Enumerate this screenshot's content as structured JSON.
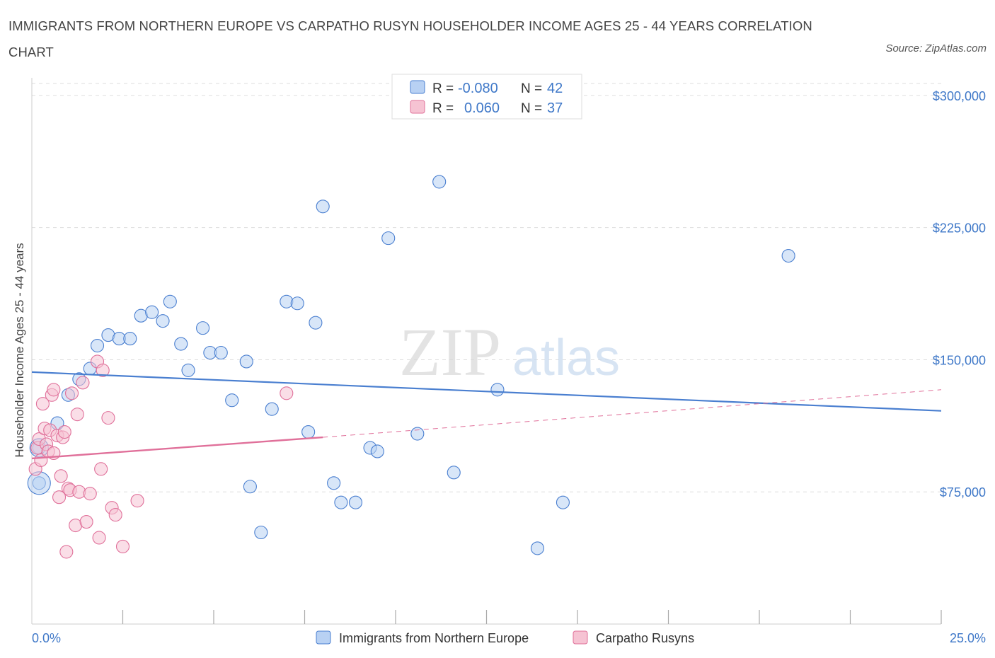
{
  "title": "IMMIGRANTS FROM NORTHERN EUROPE VS CARPATHO RUSYN HOUSEHOLDER INCOME AGES 25 - 44 YEARS CORRELATION CHART",
  "source": "Source: ZipAtlas.com",
  "watermark": {
    "zip": "ZIP",
    "atlas": "atlas"
  },
  "colors": {
    "blue": "#4a7fd0",
    "blue_fill": "#b8d1f3",
    "pink": "#e0709a",
    "pink_fill": "#f6c3d3",
    "axis_text": "#3f78c8",
    "grid": "#dddddd"
  },
  "legend_top": [
    {
      "r_label": "R =",
      "r_value": "-0.080",
      "n_label": "N =",
      "n_value": "42"
    },
    {
      "r_label": "R =",
      "r_value": "0.060",
      "n_label": "N =",
      "n_value": "37"
    }
  ],
  "chart_data": {
    "type": "scatter",
    "ylabel": "Householder Income Ages 25 - 44 years",
    "xlim": [
      0,
      25
    ],
    "ylim": [
      0,
      310000
    ],
    "x_tick_labels": [
      "0.0%",
      "25.0%"
    ],
    "y_ticks": [
      {
        "value": 75000,
        "label": "$75,000"
      },
      {
        "value": 150000,
        "label": "$150,000"
      },
      {
        "value": 225000,
        "label": "$225,000"
      },
      {
        "value": 300000,
        "label": "$300,000"
      }
    ],
    "grid": "horizontal dashed",
    "legend_position": "bottom-center",
    "series": [
      {
        "name": "Immigrants from Northern Europe",
        "color": "#4a7fd0",
        "trend": {
          "x": [
            0,
            25
          ],
          "y": [
            143000,
            121000
          ],
          "style": "solid"
        },
        "points": [
          [
            0.2,
            100000
          ],
          [
            0.2,
            80000
          ],
          [
            0.7,
            114000
          ],
          [
            1.0,
            130000
          ],
          [
            1.3,
            139000
          ],
          [
            1.6,
            145000
          ],
          [
            1.8,
            158000
          ],
          [
            2.1,
            164000
          ],
          [
            2.4,
            162000
          ],
          [
            2.7,
            162000
          ],
          [
            3.0,
            175000
          ],
          [
            3.3,
            177000
          ],
          [
            3.6,
            172000
          ],
          [
            3.8,
            183000
          ],
          [
            4.1,
            159000
          ],
          [
            4.3,
            144000
          ],
          [
            4.7,
            168000
          ],
          [
            4.9,
            154000
          ],
          [
            5.2,
            154000
          ],
          [
            5.5,
            127000
          ],
          [
            5.9,
            149000
          ],
          [
            6.0,
            78000
          ],
          [
            6.3,
            52000
          ],
          [
            6.6,
            122000
          ],
          [
            7.0,
            183000
          ],
          [
            7.3,
            182000
          ],
          [
            7.6,
            109000
          ],
          [
            7.8,
            171000
          ],
          [
            8.0,
            237000
          ],
          [
            8.3,
            80000
          ],
          [
            8.5,
            69000
          ],
          [
            8.9,
            69000
          ],
          [
            9.3,
            100000
          ],
          [
            9.5,
            98000
          ],
          [
            9.8,
            219000
          ],
          [
            10.6,
            108000
          ],
          [
            11.2,
            251000
          ],
          [
            11.6,
            86000
          ],
          [
            12.8,
            133000
          ],
          [
            13.9,
            43000
          ],
          [
            14.6,
            69000
          ],
          [
            20.8,
            209000
          ]
        ]
      },
      {
        "name": "Carpatho Rusyns",
        "color": "#e0709a",
        "trend": {
          "x": [
            0,
            8
          ],
          "y": [
            94000,
            106000
          ],
          "style": "solid",
          "extended": {
            "x": [
              8,
              25
            ],
            "y": [
              106000,
              133000
            ],
            "style": "dashed"
          }
        },
        "points": [
          [
            0.1,
            88000
          ],
          [
            0.15,
            100000
          ],
          [
            0.2,
            105000
          ],
          [
            0.25,
            93000
          ],
          [
            0.3,
            125000
          ],
          [
            0.35,
            111000
          ],
          [
            0.4,
            102000
          ],
          [
            0.45,
            98000
          ],
          [
            0.5,
            110000
          ],
          [
            0.55,
            130000
          ],
          [
            0.6,
            133000
          ],
          [
            0.6,
            97000
          ],
          [
            0.7,
            107000
          ],
          [
            0.75,
            72000
          ],
          [
            0.8,
            84000
          ],
          [
            0.85,
            106000
          ],
          [
            0.9,
            109000
          ],
          [
            0.95,
            41000
          ],
          [
            1.0,
            77000
          ],
          [
            1.05,
            76000
          ],
          [
            1.1,
            131000
          ],
          [
            1.2,
            56000
          ],
          [
            1.25,
            119000
          ],
          [
            1.3,
            75000
          ],
          [
            1.4,
            137000
          ],
          [
            1.5,
            58000
          ],
          [
            1.6,
            74000
          ],
          [
            1.8,
            149000
          ],
          [
            1.85,
            49000
          ],
          [
            1.9,
            88000
          ],
          [
            1.95,
            144000
          ],
          [
            2.1,
            117000
          ],
          [
            2.2,
            66000
          ],
          [
            2.3,
            62000
          ],
          [
            2.5,
            44000
          ],
          [
            2.9,
            70000
          ],
          [
            7.0,
            131000
          ]
        ]
      }
    ]
  }
}
